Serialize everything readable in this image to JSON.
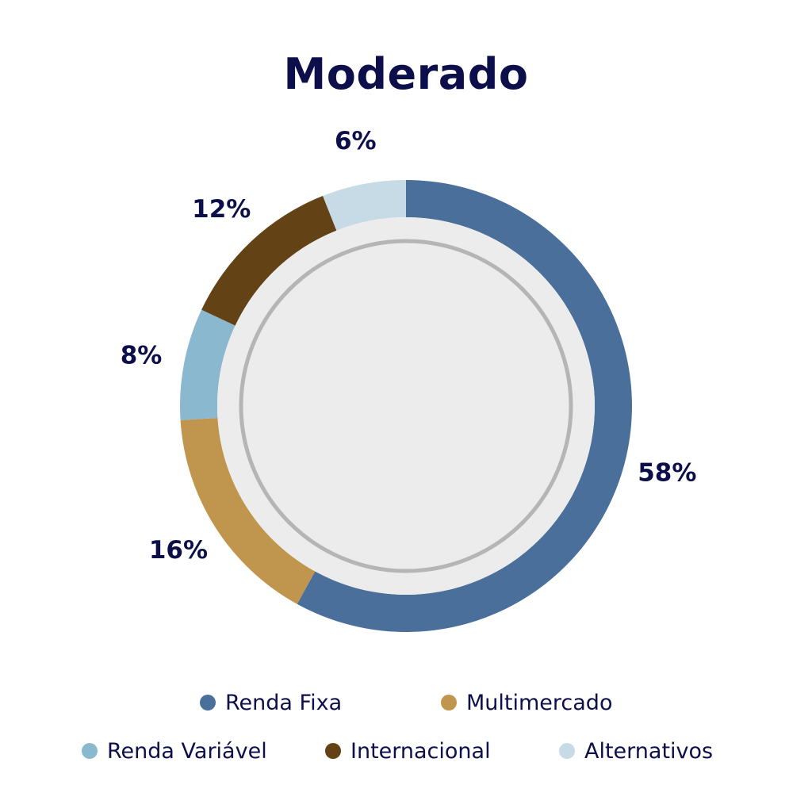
{
  "chart_data": {
    "type": "pie",
    "title": "Moderado",
    "categories": [
      "Renda Fixa",
      "Multimercado",
      "Renda Variável",
      "Internacional",
      "Alternativos"
    ],
    "values": [
      58,
      16,
      8,
      12,
      6
    ],
    "value_labels": [
      "58%",
      "16%",
      "8%",
      "12%",
      "6%"
    ],
    "colors": [
      "#4a6f9a",
      "#c0964f",
      "#8ab8ce",
      "#634215",
      "#c6dbe6"
    ],
    "center_color": "#ececec",
    "center_ring_color": "#b5b5b5",
    "direction": "clockwise-from-top",
    "legend_position": "bottom"
  },
  "legend": {
    "items": [
      {
        "label": "Renda Fixa",
        "color": "#4a6f9a"
      },
      {
        "label": "Multimercado",
        "color": "#c0964f"
      },
      {
        "label": "Renda Variável",
        "color": "#8ab8ce"
      },
      {
        "label": "Internacional",
        "color": "#634215"
      },
      {
        "label": "Alternativos",
        "color": "#c6dbe6"
      }
    ]
  }
}
